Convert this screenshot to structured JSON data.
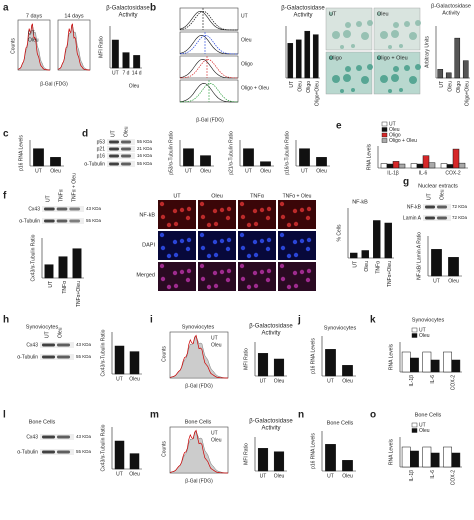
{
  "panels": {
    "a": {
      "letter": "a",
      "texts": [
        "7 days",
        "14 days",
        "Counts",
        "UT",
        "Oleu",
        "β-Gal (FDG)",
        "β-Galactosidase",
        "Activity",
        "Oleu"
      ],
      "charts": [
        {
          "ylabel": "MFI Ratio",
          "categories": [
            "UT",
            "7 d",
            "14 d"
          ],
          "values": [
            1,
            0.55,
            0.45
          ],
          "color": "#111111",
          "ylim": [
            0,
            1.5
          ]
        }
      ]
    },
    "b": {
      "letter": "b",
      "texts": [
        "UT",
        "Oleu",
        "Oligo",
        "Oligo + Oleu",
        "β-Gal (FDG)",
        "β-Galactosidase",
        "Activity",
        "UT",
        "Oleu",
        "Oligo",
        "Oligo + Oleu",
        "β-Galactosidase",
        "Activity"
      ],
      "charts": [
        {
          "categories": [
            "UT",
            "Oleu",
            "Oligo",
            "Oligo+Oleu"
          ],
          "values": [
            1,
            1.1,
            1.35,
            1.25
          ],
          "color": "#111111",
          "ylim": [
            0,
            1.5
          ]
        },
        {
          "ylabel": "Arbitrary Units",
          "categories": [
            "UT",
            "Oleu",
            "Oligo",
            "Oligo+Oleu"
          ],
          "values": [
            0.5,
            0.3,
            2.3,
            1.0
          ],
          "color": "#555555",
          "ylim": [
            0,
            3
          ]
        }
      ]
    },
    "c": {
      "letter": "c",
      "texts": [],
      "charts": [
        {
          "ylabel": "p16 RNA Levels",
          "categories": [
            "UT",
            "Oleu"
          ],
          "values": [
            1,
            0.5
          ],
          "color": "#111111",
          "ylim": [
            0,
            1.5
          ]
        }
      ]
    },
    "d": {
      "letter": "d",
      "texts": [
        "UT",
        "Oleu",
        "p53",
        "p21",
        "p16",
        "α-Tubulin",
        "55 KDa",
        "21 KDa",
        "16 KDa",
        "55 KDa"
      ],
      "charts": [
        {
          "ylabel": "p53/α-Tubulin Ratio",
          "categories": [
            "UT",
            "Oleu"
          ],
          "values": [
            1,
            0.6
          ],
          "color": "#111111",
          "ylim": [
            0,
            1.5
          ]
        },
        {
          "ylabel": "p21/α-Tubulin Ratio",
          "categories": [
            "UT",
            "Oleu"
          ],
          "values": [
            1,
            0.25
          ],
          "color": "#111111",
          "ylim": [
            0,
            1.5
          ]
        },
        {
          "ylabel": "p16/α-Tubulin Ratio",
          "categories": [
            "UT",
            "Oleu"
          ],
          "values": [
            1,
            0.5
          ],
          "color": "#111111",
          "ylim": [
            0,
            1.5
          ]
        }
      ]
    },
    "e": {
      "letter": "e",
      "texts": [],
      "charts": [
        {
          "ylabel": "RNA Levels",
          "categories": [
            "IL-1β",
            "IL-6",
            "COX-2"
          ],
          "ylim": [
            0,
            5
          ],
          "series": [
            {
              "name": "UT",
              "color": "#ffffff",
              "values": [
                1,
                1,
                1
              ]
            },
            {
              "name": "Oleu",
              "color": "#111111",
              "values": [
                0.9,
                0.9,
                0.8
              ]
            },
            {
              "name": "Oligo",
              "color": "#d62728",
              "values": [
                1.5,
                2.8,
                4.3
              ]
            },
            {
              "name": "Oligo + Oleu",
              "color": "#aaaaaa",
              "values": [
                0.9,
                1.2,
                1.1
              ]
            }
          ]
        }
      ]
    },
    "f": {
      "letter": "f",
      "texts": [
        "UT",
        "TNFα",
        "TNFα + Oleu",
        "Cx43",
        "α-Tubulin",
        "43 KDa",
        "55 KDa",
        "UT",
        "Oleu",
        "TNFα",
        "TNFα + Oleu",
        "NF-kB",
        "DAPI",
        "Merged",
        "NF-kB"
      ],
      "charts": [
        {
          "ylabel": "Cx43/α-Tubulin Ratio",
          "categories": [
            "UT",
            "TNFα",
            "TNFα+Oleu"
          ],
          "values": [
            1,
            1.6,
            2.2
          ],
          "color": "#111111",
          "ylim": [
            0,
            3
          ]
        },
        {
          "ylabel": "% Cells",
          "categories": [
            "UT",
            "Oleu",
            "TNFα",
            "TNFα+Oleu"
          ],
          "values": [
            10,
            15,
            75,
            70
          ],
          "color": "#111111",
          "ylim": [
            0,
            100
          ]
        }
      ]
    },
    "g": {
      "letter": "g",
      "texts": [
        "Nuclear extracts",
        "UT",
        "Oleu",
        "NF-kB",
        "Lamin A",
        "72 KDa",
        "72 KDa"
      ],
      "charts": [
        {
          "ylabel": "NF-kB/ Lamin A Ratio",
          "categories": [
            "UT",
            "Oleu"
          ],
          "values": [
            1,
            0.7
          ],
          "color": "#111111",
          "ylim": [
            0,
            1.5
          ]
        }
      ]
    },
    "h": {
      "letter": "h",
      "texts": [
        "Synoviocytes",
        "UT",
        "Oleu",
        "Cx43",
        "α-Tubulin",
        "43 KDa",
        "55 KDa"
      ],
      "charts": [
        {
          "ylabel": "Cx43/α-Tubulin Ratio",
          "categories": [
            "UT",
            "Oleu"
          ],
          "values": [
            1,
            0.8
          ],
          "color": "#111111",
          "ylim": [
            0,
            1.5
          ]
        }
      ]
    },
    "i": {
      "letter": "i",
      "texts": [
        "Synoviocytes",
        "Counts",
        "UT",
        "Oleu",
        "β-Gal (FDG)",
        "β-Galactosidase",
        "Activity"
      ],
      "charts": [
        {
          "ylabel": "MFI Ratio",
          "categories": [
            "UT",
            "Oleu"
          ],
          "values": [
            1,
            0.75
          ],
          "color": "#111111",
          "ylim": [
            0,
            1.5
          ]
        }
      ]
    },
    "j": {
      "letter": "j",
      "texts": [
        "Synoviocytes"
      ],
      "charts": [
        {
          "ylabel": "p16 RNA Levels",
          "categories": [
            "UT",
            "Oleu"
          ],
          "values": [
            1,
            0.4
          ],
          "color": "#111111",
          "ylim": [
            0,
            1.5
          ]
        }
      ]
    },
    "k": {
      "letter": "k",
      "texts": [
        "Synoviocytes"
      ],
      "charts": [
        {
          "ylabel": "RNA Levels",
          "categories": [
            "IL-1β",
            "IL-6",
            "COX-2"
          ],
          "ylim": [
            0,
            1.5
          ],
          "series": [
            {
              "name": "UT",
              "color": "#ffffff",
              "values": [
                1,
                1,
                1
              ]
            },
            {
              "name": "Oleu",
              "color": "#111111",
              "values": [
                0.7,
                0.6,
                0.6
              ]
            }
          ]
        }
      ]
    },
    "l": {
      "letter": "l",
      "texts": [
        "Bone Cells",
        "Cx43",
        "α-Tubulin",
        "43 KDa",
        "55 KDa"
      ],
      "charts": [
        {
          "ylabel": "Cx43/α-Tubulin Ratio",
          "categories": [
            "UT",
            "Oleu"
          ],
          "values": [
            1,
            0.55
          ],
          "color": "#111111",
          "ylim": [
            0,
            1.5
          ]
        }
      ]
    },
    "m": {
      "letter": "m",
      "texts": [
        "Bone Cells",
        "Counts",
        "UT",
        "Oleu",
        "β-Gal (FDG)",
        "β-Galactosidase",
        "Activity"
      ],
      "charts": [
        {
          "ylabel": "MFI Ratio",
          "categories": [
            "UT",
            "Oleu"
          ],
          "values": [
            1,
            0.85
          ],
          "color": "#111111",
          "ylim": [
            0,
            1.5
          ]
        }
      ]
    },
    "n": {
      "letter": "n",
      "texts": [
        "Bone Cells"
      ],
      "charts": [
        {
          "ylabel": "p16 RNA Levels",
          "categories": [
            "UT",
            "Oleu"
          ],
          "values": [
            1,
            0.4
          ],
          "color": "#111111",
          "ylim": [
            0,
            1.5
          ]
        }
      ]
    },
    "o": {
      "letter": "o",
      "texts": [
        "Bone Cells"
      ],
      "charts": [
        {
          "ylabel": "RNA Levels",
          "categories": [
            "IL-1β",
            "IL-6",
            "COX-2"
          ],
          "ylim": [
            0,
            1.5
          ],
          "series": [
            {
              "name": "UT",
              "color": "#ffffff",
              "values": [
                1,
                1,
                1
              ]
            },
            {
              "name": "Oleu",
              "color": "#111111",
              "values": [
                0.8,
                0.7,
                0.7
              ]
            }
          ]
        }
      ]
    }
  }
}
